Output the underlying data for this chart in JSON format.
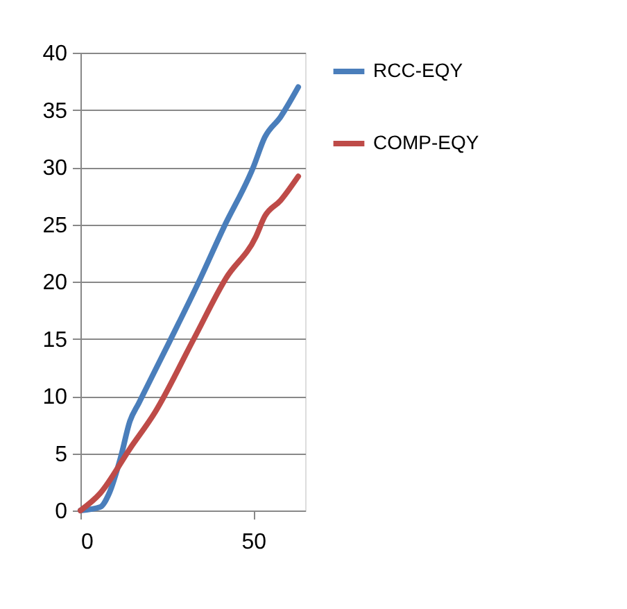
{
  "chart_data": {
    "type": "line",
    "xlim": [
      0,
      65
    ],
    "xticks": [
      0,
      50
    ],
    "ylim": [
      0,
      40
    ],
    "yticks": [
      0,
      5,
      10,
      15,
      20,
      25,
      30,
      35,
      40
    ],
    "grid": "y",
    "legend": "right",
    "line_style": "solid",
    "marker": "none",
    "series": [
      {
        "name": "RCC-EQY",
        "color": "#4a7ebb",
        "x": [
          0,
          5.7,
          8.3,
          11.6,
          14.3,
          16.9,
          25.5,
          34.1,
          41.4,
          50,
          53.3,
          57.9,
          63
        ],
        "values": [
          0,
          0.3,
          1.5,
          4.6,
          7.8,
          9.4,
          14.6,
          19.9,
          24.7,
          30,
          32.6,
          34.4,
          37
        ]
      },
      {
        "name": "COMP-EQY",
        "color": "#be4b48",
        "x": [
          0,
          5.7,
          14.3,
          21.6,
          32.8,
          42.1,
          50.7,
          53.3,
          57.9,
          63
        ],
        "values": [
          0,
          1.5,
          5.4,
          8.6,
          15,
          20.3,
          23.9,
          25.7,
          27.1,
          29.2
        ]
      }
    ]
  }
}
